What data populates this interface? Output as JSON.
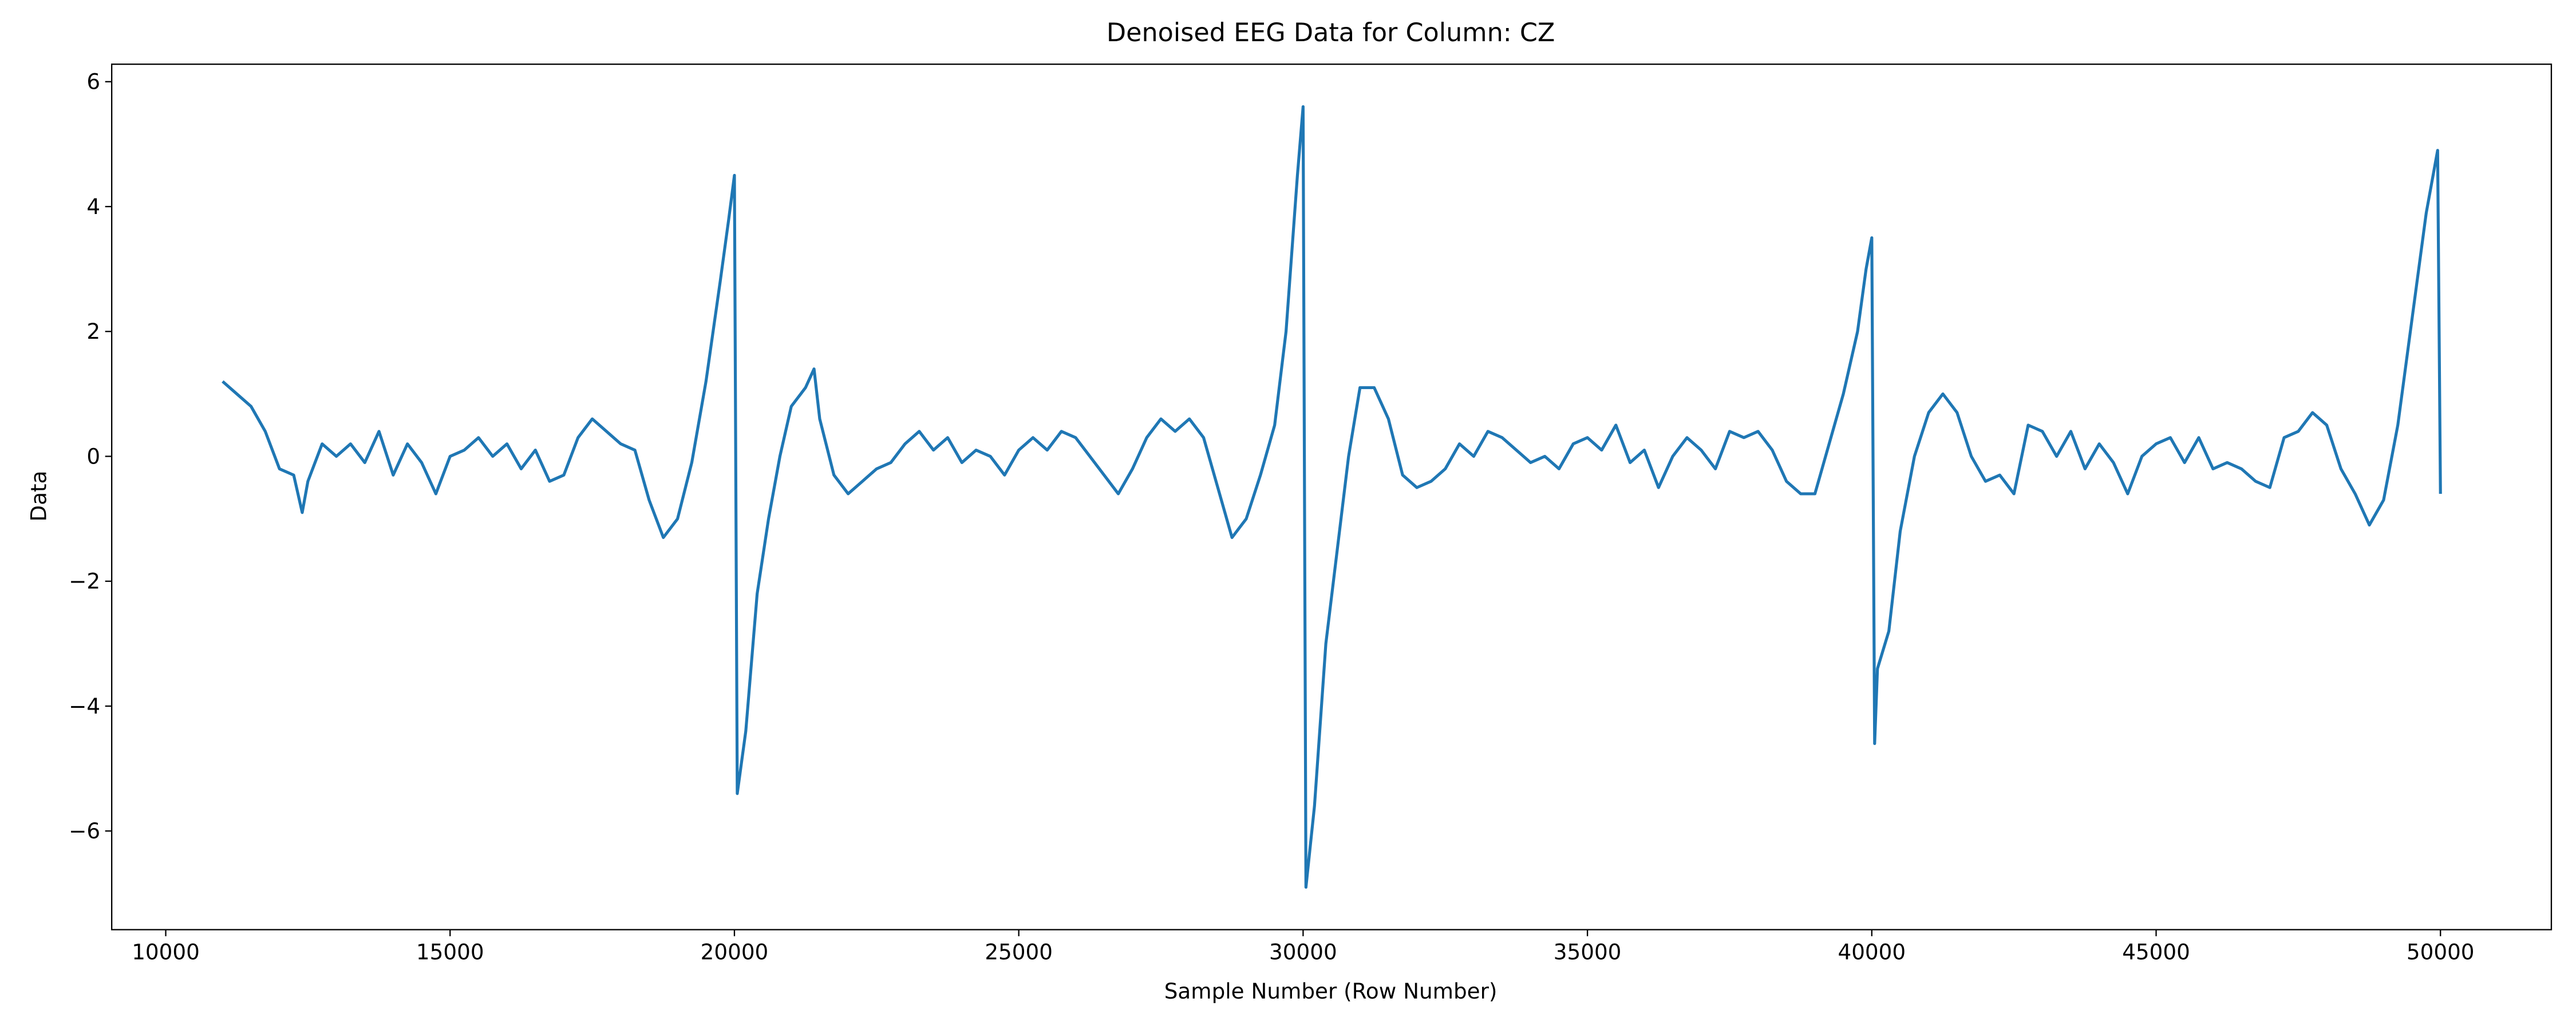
{
  "chart_data": {
    "type": "line",
    "title": "Denoised EEG Data for Column: CZ",
    "x_label": "Sample Number (Row Number)",
    "y_label": "Data",
    "xlim": [
      9050,
      51950
    ],
    "ylim": [
      -7.58,
      6.28
    ],
    "xticks": [
      10000,
      15000,
      20000,
      25000,
      30000,
      35000,
      40000,
      45000,
      50000
    ],
    "yticks": [
      {
        "value": -6,
        "label": "−6"
      },
      {
        "value": -4,
        "label": "−4"
      },
      {
        "value": -2,
        "label": "−2"
      },
      0,
      2,
      4,
      6
    ],
    "grid": false,
    "x": [
      11000,
      11250,
      11500,
      11750,
      12000,
      12250,
      12400,
      12500,
      12750,
      13000,
      13250,
      13500,
      13750,
      14000,
      14250,
      14500,
      14750,
      15000,
      15250,
      15500,
      15750,
      16000,
      16250,
      16500,
      16750,
      17000,
      17250,
      17500,
      17750,
      18000,
      18250,
      18500,
      18750,
      19000,
      19250,
      19500,
      19750,
      19900,
      20000,
      20050,
      20200,
      20400,
      20600,
      20800,
      21000,
      21250,
      21400,
      21500,
      21750,
      22000,
      22250,
      22500,
      22750,
      23000,
      23250,
      23500,
      23750,
      24000,
      24250,
      24500,
      24750,
      25000,
      25250,
      25500,
      25750,
      26000,
      26250,
      26500,
      26750,
      27000,
      27250,
      27500,
      27750,
      28000,
      28250,
      28500,
      28750,
      29000,
      29250,
      29500,
      29700,
      29900,
      30000,
      30050,
      30200,
      30400,
      30600,
      30800,
      31000,
      31250,
      31500,
      31750,
      32000,
      32250,
      32500,
      32750,
      33000,
      33250,
      33500,
      33750,
      34000,
      34250,
      34500,
      34750,
      35000,
      35250,
      35500,
      35750,
      36000,
      36250,
      36500,
      36750,
      37000,
      37250,
      37500,
      37750,
      38000,
      38250,
      38500,
      38750,
      39000,
      39250,
      39500,
      39750,
      39900,
      40000,
      40050,
      40100,
      40300,
      40500,
      40750,
      41000,
      41250,
      41500,
      41750,
      42000,
      42250,
      42500,
      42750,
      43000,
      43250,
      43500,
      43750,
      44000,
      44250,
      44500,
      44750,
      45000,
      45250,
      45500,
      45750,
      46000,
      46250,
      46500,
      46750,
      47000,
      47250,
      47500,
      47750,
      48000,
      48250,
      48500,
      48750,
      49000,
      49250,
      49500,
      49750,
      49950,
      50000
    ],
    "series": [
      {
        "name": "CZ",
        "color": "#1f77b4",
        "values": [
          1.2,
          1.0,
          0.8,
          0.4,
          -0.2,
          -0.3,
          -0.9,
          -0.4,
          0.2,
          0.0,
          0.2,
          -0.1,
          0.4,
          -0.3,
          0.2,
          -0.1,
          -0.6,
          0.0,
          0.1,
          0.3,
          0.0,
          0.2,
          -0.2,
          0.1,
          -0.4,
          -0.3,
          0.3,
          0.6,
          0.4,
          0.2,
          0.1,
          -0.7,
          -1.3,
          -1.0,
          -0.1,
          1.2,
          2.8,
          3.8,
          4.5,
          -5.4,
          -4.4,
          -2.2,
          -1.0,
          0.0,
          0.8,
          1.1,
          1.4,
          0.6,
          -0.3,
          -0.6,
          -0.4,
          -0.2,
          -0.1,
          0.2,
          0.4,
          0.1,
          0.3,
          -0.1,
          0.1,
          0.0,
          -0.3,
          0.1,
          0.3,
          0.1,
          0.4,
          0.3,
          0.0,
          -0.3,
          -0.6,
          -0.2,
          0.3,
          0.6,
          0.4,
          0.6,
          0.3,
          -0.5,
          -1.3,
          -1.0,
          -0.3,
          0.5,
          2.0,
          4.5,
          5.6,
          -6.9,
          -5.6,
          -3.0,
          -1.5,
          0.0,
          1.1,
          1.1,
          0.6,
          -0.3,
          -0.5,
          -0.4,
          -0.2,
          0.2,
          0.0,
          0.4,
          0.3,
          0.1,
          -0.1,
          0.0,
          -0.2,
          0.2,
          0.3,
          0.1,
          0.5,
          -0.1,
          0.1,
          -0.5,
          0.0,
          0.3,
          0.1,
          -0.2,
          0.4,
          0.3,
          0.4,
          0.1,
          -0.4,
          -0.6,
          -0.6,
          0.2,
          1.0,
          2.0,
          3.0,
          3.5,
          -4.6,
          -3.4,
          -2.8,
          -1.2,
          0.0,
          0.7,
          1.0,
          0.7,
          0.0,
          -0.4,
          -0.3,
          -0.6,
          0.5,
          0.4,
          0.0,
          0.4,
          -0.2,
          0.2,
          -0.1,
          -0.6,
          0.0,
          0.2,
          0.3,
          -0.1,
          0.3,
          -0.2,
          -0.1,
          -0.2,
          -0.4,
          -0.5,
          0.3,
          0.4,
          0.7,
          0.5,
          -0.2,
          -0.6,
          -1.1,
          -0.7,
          0.5,
          2.2,
          3.9,
          4.9,
          -0.6
        ]
      }
    ]
  }
}
